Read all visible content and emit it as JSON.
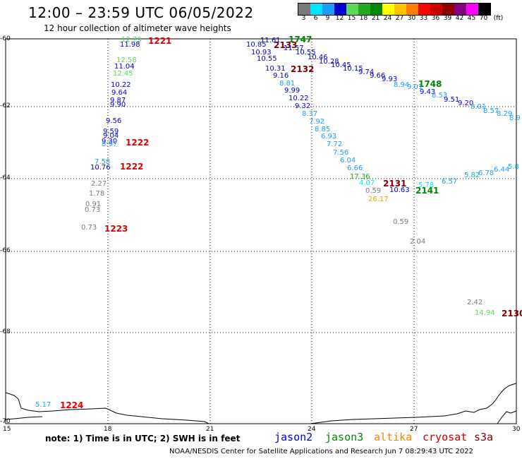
{
  "header": {
    "title": "12:00 – 23:59 UTC 06/05/2022",
    "subtitle": "12 hour collection of altimeter wave heights"
  },
  "legend": {
    "values": [
      "3",
      "6",
      "9",
      "12",
      "15",
      "18",
      "21",
      "24",
      "27",
      "30",
      "33",
      "36",
      "39",
      "42",
      "45",
      "70",
      "(ft)"
    ],
    "colors": [
      "#7a7a7a",
      "#00e5ff",
      "#1e9bff",
      "#0000cd",
      "#5bd75b",
      "#22aa22",
      "#008800",
      "#ffff00",
      "#ffc000",
      "#ff8000",
      "#ff0000",
      "#cc0000",
      "#8b0000",
      "#800080",
      "#ff00ff",
      "#000000"
    ]
  },
  "axes": {
    "y_labels": [
      "-60",
      "-62",
      "-64",
      "-66",
      "-68",
      "-70"
    ],
    "x_labels": [
      "15",
      "18",
      "21",
      "24",
      "27",
      "30"
    ]
  },
  "passes": [
    {
      "label": "1221",
      "color": "#e00000"
    },
    {
      "label": "1222",
      "color": "#e00000"
    },
    {
      "label": "1222",
      "color": "#e00000"
    },
    {
      "label": "1223",
      "color": "#e00000"
    },
    {
      "label": "1224",
      "color": "#e00000"
    },
    {
      "label": "1747",
      "color": "#008800"
    },
    {
      "label": "2133",
      "color": "#800000"
    },
    {
      "label": "2132",
      "color": "#800000"
    },
    {
      "label": "1748",
      "color": "#008800"
    },
    {
      "label": "2131",
      "color": "#800000"
    },
    {
      "label": "2141",
      "color": "#008800"
    },
    {
      "label": "2130",
      "color": "#800000"
    }
  ],
  "observations": [
    {
      "value": "12.79",
      "color": "#5bd75b"
    },
    {
      "value": "11.98",
      "color": "#0000cd"
    },
    {
      "value": "12.58",
      "color": "#5bd75b"
    },
    {
      "value": "11.04",
      "color": "#0000cd"
    },
    {
      "value": "12.45",
      "color": "#5bd75b"
    },
    {
      "value": "10.22",
      "color": "#0000cd"
    },
    {
      "value": "9.64",
      "color": "#0000cd"
    },
    {
      "value": "9.87",
      "color": "#0000cd"
    },
    {
      "value": "9.90",
      "color": "#0000cd"
    },
    {
      "value": "9.56",
      "color": "#0000cd"
    },
    {
      "value": "9.59",
      "color": "#0000cd"
    },
    {
      "value": "9.04",
      "color": "#0000cd"
    },
    {
      "value": "9.30",
      "color": "#0000cd"
    },
    {
      "value": "8.97",
      "color": "#1e9bff"
    },
    {
      "value": "7.58",
      "color": "#1e9bff"
    },
    {
      "value": "10.76",
      "color": "#0000cd"
    },
    {
      "value": "2.27",
      "color": "#7a7a7a"
    },
    {
      "value": "1.78",
      "color": "#7a7a7a"
    },
    {
      "value": "0.91",
      "color": "#7a7a7a"
    },
    {
      "value": "0.73",
      "color": "#7a7a7a"
    },
    {
      "value": "0.73",
      "color": "#7a7a7a"
    },
    {
      "value": "5.17",
      "color": "#00bcd4"
    },
    {
      "value": "11.61",
      "color": "#0000cd"
    },
    {
      "value": "10.85",
      "color": "#0000cd"
    },
    {
      "value": "11.57",
      "color": "#0000cd"
    },
    {
      "value": "10.93",
      "color": "#0000cd"
    },
    {
      "value": "10.55",
      "color": "#0000cd"
    },
    {
      "value": "10.55",
      "color": "#0000cd"
    },
    {
      "value": "10.46",
      "color": "#0000cd"
    },
    {
      "value": "10.28",
      "color": "#0000cd"
    },
    {
      "value": "10.31",
      "color": "#0000cd"
    },
    {
      "value": "10.45",
      "color": "#0000cd"
    },
    {
      "value": "10.15",
      "color": "#0000cd"
    },
    {
      "value": "9.16",
      "color": "#0000cd"
    },
    {
      "value": "9.74",
      "color": "#0000cd"
    },
    {
      "value": "9.66",
      "color": "#0000cd"
    },
    {
      "value": "9.93",
      "color": "#0000cd"
    },
    {
      "value": "8.81",
      "color": "#1e9bff"
    },
    {
      "value": "8.94",
      "color": "#1e9bff"
    },
    {
      "value": "9.01",
      "color": "#1e9bff"
    },
    {
      "value": "9.99",
      "color": "#0000cd"
    },
    {
      "value": "9.43",
      "color": "#0000cd"
    },
    {
      "value": "8.53",
      "color": "#1e9bff"
    },
    {
      "value": "10.22",
      "color": "#0000cd"
    },
    {
      "value": "9.51",
      "color": "#0000cd"
    },
    {
      "value": "9.20",
      "color": "#0000cd"
    },
    {
      "value": "9.32",
      "color": "#0000cd"
    },
    {
      "value": "8.01",
      "color": "#1e9bff"
    },
    {
      "value": "8.37",
      "color": "#1e9bff"
    },
    {
      "value": "8.57",
      "color": "#1e9bff"
    },
    {
      "value": "8.29",
      "color": "#1e9bff"
    },
    {
      "value": "8.9",
      "color": "#1e9bff"
    },
    {
      "value": "7.92",
      "color": "#1e9bff"
    },
    {
      "value": "8.85",
      "color": "#1e9bff"
    },
    {
      "value": "6.93",
      "color": "#1e9bff"
    },
    {
      "value": "7.72",
      "color": "#1e9bff"
    },
    {
      "value": "7.56",
      "color": "#1e9bff"
    },
    {
      "value": "6.04",
      "color": "#1e9bff"
    },
    {
      "value": "6.66",
      "color": "#1e9bff"
    },
    {
      "value": "5.82",
      "color": "#00bcd4"
    },
    {
      "value": "6.78",
      "color": "#1e9bff"
    },
    {
      "value": "6.44",
      "color": "#1e9bff"
    },
    {
      "value": "5.8",
      "color": "#00bcd4"
    },
    {
      "value": "17.36",
      "color": "#22aa22"
    },
    {
      "value": "6.57",
      "color": "#1e9bff"
    },
    {
      "value": "4.07",
      "color": "#00e5ff"
    },
    {
      "value": "5.78",
      "color": "#00e5ff"
    },
    {
      "value": "0.59",
      "color": "#7a7a7a"
    },
    {
      "value": "10.63",
      "color": "#0000cd"
    },
    {
      "value": "26.17",
      "color": "#e0a800"
    },
    {
      "value": "0.59",
      "color": "#7a7a7a"
    },
    {
      "value": "2.04",
      "color": "#7a7a7a"
    },
    {
      "value": "2.42",
      "color": "#7a7a7a"
    },
    {
      "value": "14.94",
      "color": "#5bd75b"
    }
  ],
  "footer": {
    "note": "note: 1) Time is in UTC; 2) SWH is in feet",
    "satellites": [
      {
        "name": "jason2",
        "color": "#0000cd"
      },
      {
        "name": "jason3",
        "color": "#008800"
      },
      {
        "name": "altika",
        "color": "#ff8000"
      },
      {
        "name": "cryosat",
        "color": "#cc0000"
      },
      {
        "name": "s3a",
        "color": "#8b0000"
      }
    ],
    "credit": "NOAA/NESDIS Center for Satellite Applications and Research    Jun  7 08:29:43 UTC 2022"
  }
}
